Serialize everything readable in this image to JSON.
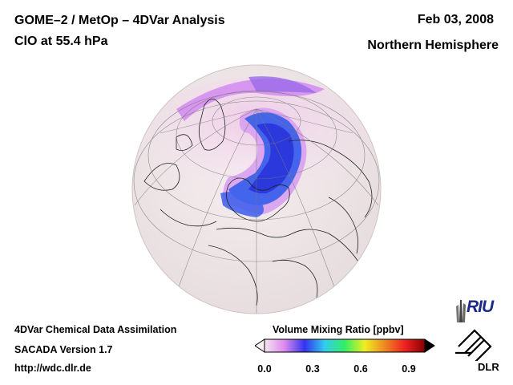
{
  "header": {
    "title_line1": "GOME–2 / MetOp – 4DVar Analysis",
    "title_line2": "ClO at 55.4 hPa",
    "date": "Feb 03, 2008",
    "region": "Northern Hemisphere"
  },
  "footer": {
    "line1": "4DVar Chemical Data Assimilation",
    "line2": "SACADA Version 1.7",
    "line3": "http://wdc.dlr.de"
  },
  "colorbar": {
    "title": "Volume Mixing Ratio [ppbv]",
    "ticks": [
      "0.0",
      "0.3",
      "0.6",
      "0.9"
    ],
    "tick_values": [
      0.0,
      0.3,
      0.6,
      0.9
    ],
    "range": [
      0.0,
      1.0
    ],
    "colors": [
      "#f4e6ee",
      "#dd88ee",
      "#3333ee",
      "#33ccee",
      "#33ee66",
      "#eeee22",
      "#ee8822",
      "#ee2222",
      "#880000"
    ]
  },
  "map": {
    "projection": "orthographic",
    "hemisphere_view": "northern",
    "background_color": "#f2e8ea",
    "vortex_colors": [
      "#c080f0",
      "#4060e8",
      "#2a3ce0"
    ]
  },
  "logos": {
    "riu": "RIU",
    "dlr": "DLR"
  }
}
